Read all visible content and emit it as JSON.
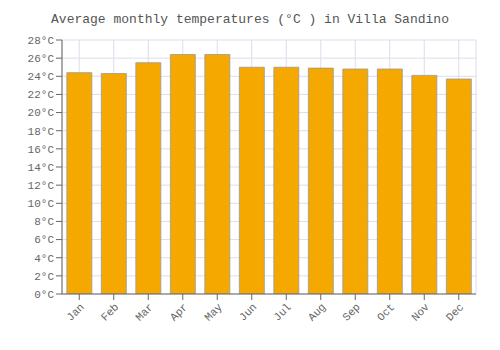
{
  "chart_data": {
    "type": "bar",
    "title": "Average monthly temperatures (°C ) in Villa Sandino",
    "categories": [
      "Jan",
      "Feb",
      "Mar",
      "Apr",
      "May",
      "Jun",
      "Jul",
      "Aug",
      "Sep",
      "Oct",
      "Nov",
      "Dec"
    ],
    "values": [
      24.4,
      24.3,
      25.5,
      26.4,
      26.4,
      25.0,
      25.0,
      24.9,
      24.8,
      24.8,
      24.1,
      23.7
    ],
    "color": "#F5A800",
    "ylim": [
      0,
      28
    ],
    "yticks": [
      {
        "value": 0,
        "label": "0°C"
      },
      {
        "value": 2,
        "label": "2°C"
      },
      {
        "value": 4,
        "label": "4°C"
      },
      {
        "value": 6,
        "label": "6°C"
      },
      {
        "value": 8,
        "label": "8°C"
      },
      {
        "value": 10,
        "label": "10°C"
      },
      {
        "value": 12,
        "label": "12°C"
      },
      {
        "value": 14,
        "label": "14°C"
      },
      {
        "value": 16,
        "label": "16°C"
      },
      {
        "value": 18,
        "label": "18°C"
      },
      {
        "value": 20,
        "label": "20°C"
      },
      {
        "value": 22,
        "label": "22°C"
      },
      {
        "value": 24,
        "label": "24°C"
      },
      {
        "value": 26,
        "label": "26°C"
      },
      {
        "value": 28,
        "label": "28°C"
      }
    ],
    "grid": true
  }
}
